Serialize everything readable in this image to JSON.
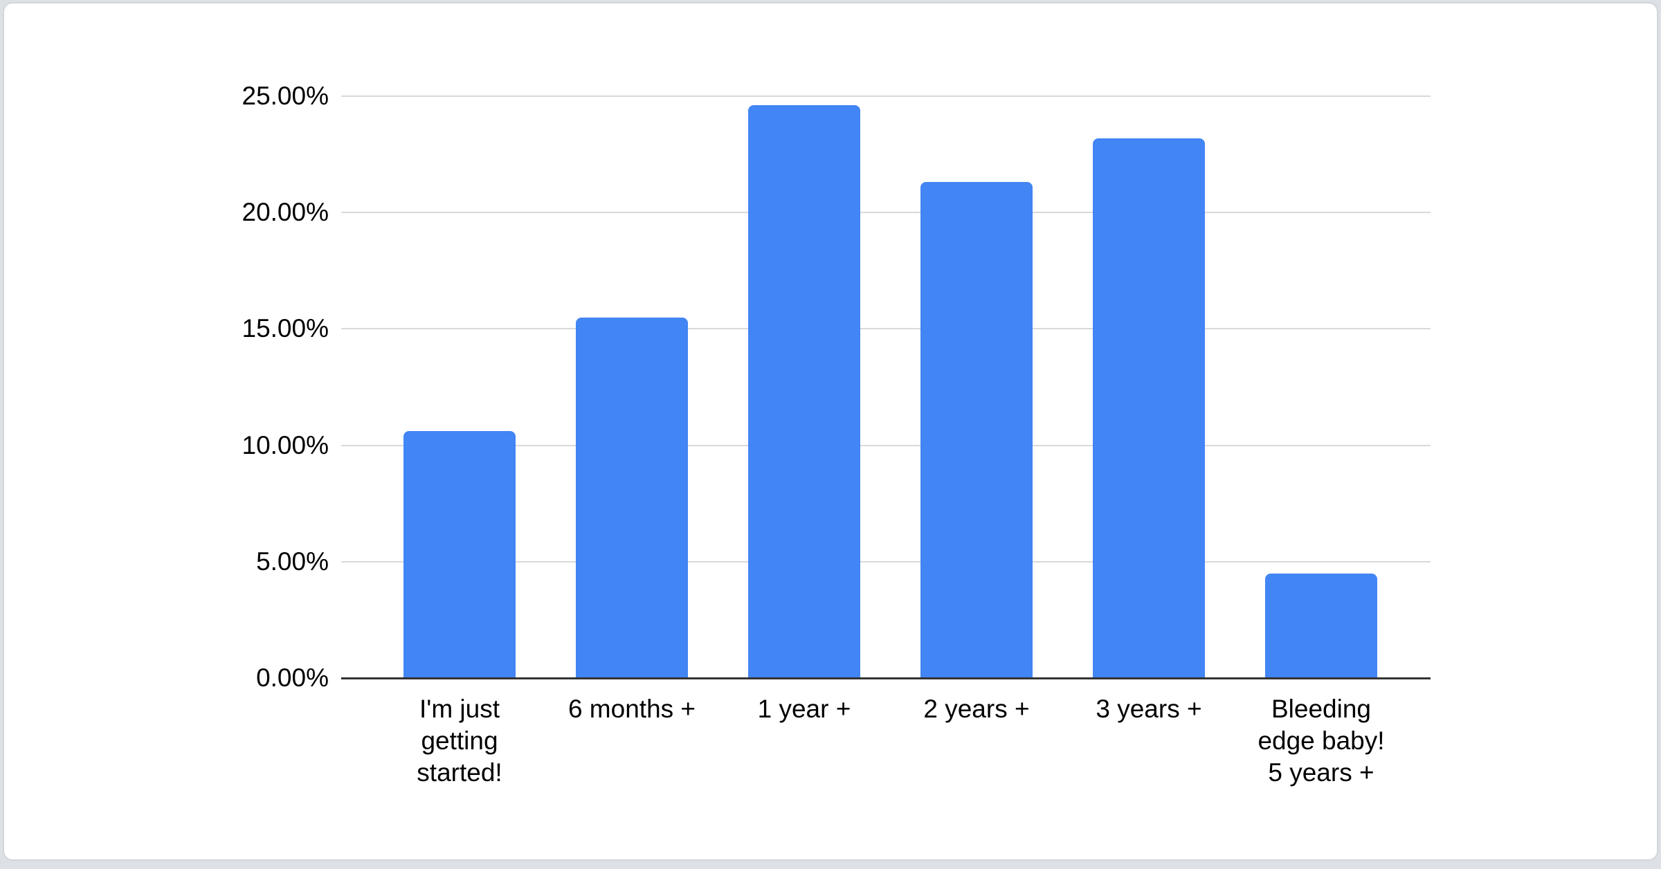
{
  "colors": {
    "page_background": "#dde0e4",
    "card_background": "#ffffff",
    "card_border": "#d2d6db",
    "bar": "#4285F4",
    "gridline": "#d9d9d9",
    "axis_line": "#333333",
    "text": "#000000"
  },
  "chart_data": {
    "type": "bar",
    "title": "",
    "xlabel": "",
    "ylabel": "",
    "categories": [
      "I'm just getting started!",
      "6 months +",
      "1 year +",
      "2 years +",
      "3 years +",
      "Bleeding edge baby! 5 years +"
    ],
    "category_lines": [
      [
        "I'm just",
        "getting",
        "started!"
      ],
      [
        "6 months +"
      ],
      [
        "1 year +"
      ],
      [
        "2 years +"
      ],
      [
        "3 years +"
      ],
      [
        "Bleeding",
        "edge baby!",
        "5 years +"
      ]
    ],
    "values": [
      10.6,
      15.5,
      24.6,
      21.3,
      23.2,
      4.5
    ],
    "value_unit": "percent",
    "ylim": [
      0,
      25
    ],
    "yticks": [
      0,
      5,
      10,
      15,
      20,
      25
    ],
    "ytick_labels": [
      "0.00%",
      "5.00%",
      "10.00%",
      "15.00%",
      "20.00%",
      "25.00%"
    ],
    "grid": true,
    "legend": false
  }
}
